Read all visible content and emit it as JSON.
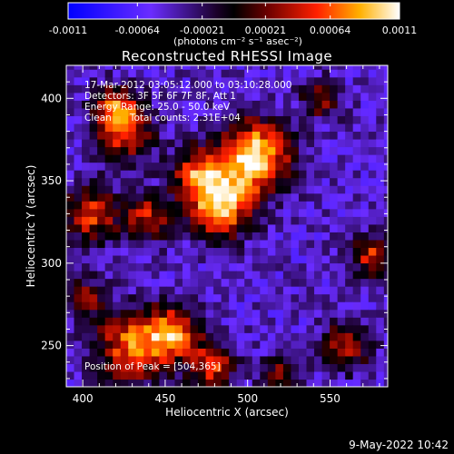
{
  "colorbar": {
    "tick_labels": [
      "-0.0011",
      "-0.00064",
      "-0.00021",
      "0.00021",
      "0.00064",
      "0.0011"
    ],
    "tick_values": [
      -0.0011,
      -0.00064,
      -0.00021,
      0.00021,
      0.00064,
      0.0011
    ],
    "range": [
      -0.0011,
      0.0011
    ],
    "unit_label": "(photons cm⁻² s⁻¹ asec⁻²)"
  },
  "chart_data": {
    "type": "heatmap",
    "title": "Reconstructed RHESSI Image",
    "xlabel": "Heliocentric X (arcsec)",
    "ylabel": "Heliocentric Y (arcsec)",
    "xlim": [
      390,
      585
    ],
    "ylim": [
      225,
      420
    ],
    "xticks": [
      400,
      450,
      500,
      550
    ],
    "yticks": [
      250,
      300,
      350,
      400
    ],
    "annotations": [
      "17-Mar-2012 03:05:12.000 to 03:10:28.000",
      "Detectors: 3F 5F 6F 7F 8F, Att 1",
      "Energy Range: 25.0 - 50.0 keV",
      "Clean      Total counts: 2.31E+04"
    ],
    "peak_label": "Position of Peak = [504,365]",
    "peak": [
      504,
      365
    ],
    "blobs": [
      {
        "x": 504,
        "y": 365,
        "sigma": 15,
        "amp": 0.0011
      },
      {
        "x": 483,
        "y": 335,
        "sigma": 13,
        "amp": 0.00095
      },
      {
        "x": 470,
        "y": 355,
        "sigma": 11,
        "amp": 0.00055
      },
      {
        "x": 425,
        "y": 380,
        "sigma": 12,
        "amp": 0.0006
      },
      {
        "x": 420,
        "y": 395,
        "sigma": 9,
        "amp": 0.00045
      },
      {
        "x": 405,
        "y": 330,
        "sigma": 12,
        "amp": 0.0005
      },
      {
        "x": 440,
        "y": 328,
        "sigma": 10,
        "amp": 0.0004
      },
      {
        "x": 430,
        "y": 250,
        "sigma": 16,
        "amp": 0.00065
      },
      {
        "x": 455,
        "y": 258,
        "sigma": 11,
        "amp": 0.0006
      },
      {
        "x": 478,
        "y": 238,
        "sigma": 10,
        "amp": 0.0005
      },
      {
        "x": 560,
        "y": 250,
        "sigma": 10,
        "amp": 0.00045
      },
      {
        "x": 575,
        "y": 305,
        "sigma": 9,
        "amp": 0.00045
      },
      {
        "x": 545,
        "y": 400,
        "sigma": 8,
        "amp": 0.00035
      },
      {
        "x": 520,
        "y": 232,
        "sigma": 8,
        "amp": 0.0003
      },
      {
        "x": 400,
        "y": 280,
        "sigma": 8,
        "amp": 0.0003
      }
    ],
    "background": -0.00045
  },
  "footer": {
    "date": "9-May-2022 10:42"
  }
}
